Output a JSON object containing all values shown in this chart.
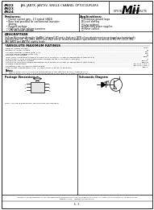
{
  "bg_color": "#ffffff",
  "title_parts": [
    "4N22",
    "4N23",
    "4N24"
  ],
  "subtitle": "JAN, JANTX, JANTXV, SINGLE CHANNEL OPTOCOUPLERS",
  "brand": "Mii",
  "brand_sub": "OPTOELECTRONIC PRODUCTS",
  "brand_sub2": "DIVISION",
  "features_title": "Features:",
  "features": [
    "Overall current gain - 1.0 typical (4N24)",
    "Base lead provided for conventional transistor",
    "  biasing",
    "Rugged package",
    "High gain, high voltage transistor",
    "+5V electrical isolation"
  ],
  "applications_title": "Applications:",
  "applications": [
    "Eliminate ground loops",
    "Level shifting",
    "Line isolation",
    "Switching power supplies",
    "Motor control"
  ],
  "description_title": "DESCRIPTION",
  "description_text": "Gallium Aluminum Arsenide (GaAlAs) infrared LED and a high gain NPN silicon phototransistor packaged in a hermetically\nsealed 6-lead DIP. The 4N22, 4N23, and 4N24 can be tested to customer specifications, as well as to MIL-PRF-19500 (MIL-\nJAN, JANTX and JANTXV) quality levels.",
  "abs_title": "*ABSOLUTE MAXIMUM RATINGS",
  "abs_ratings": [
    [
      "Input to Output Voltage",
      "7.5kV"
    ],
    [
      "Emitter-Collector Voltage",
      "4V"
    ],
    [
      "Collector Emitter Voltage (VCE, 4-1)",
      "30V"
    ],
    [
      "Collector Base Voltage (VCB, 4-1)",
      "70V"
    ],
    [
      "Reverse Input Voltage",
      "3V"
    ],
    [
      "Input (LED) Continuous Forward Current at or below 25°C Free Air Temperature (see note 1)",
      "60mA"
    ],
    [
      "Peak Forward Input Current (Restriction applies for tw < 1us; PRR > 300 pps)",
      "1A"
    ],
    [
      "Continuous Collector Current",
      "100mA"
    ],
    [
      "Continuous Transistor Power Dissipation at or below 25°C Free Air Temperature (see Note 2)",
      "300mW"
    ],
    [
      "Storage Temperature",
      "-65°C to +150°C"
    ],
    [
      "Operating (Free Air) Temperature Range",
      "-55°C to +125°C"
    ],
    [
      "Lead Solder Temperature (+10° (1.6mm) from case for 10 seconds)",
      "300°C"
    ]
  ],
  "notes": [
    "1.  Derate linearly to 0°C from air temperature at the rate of 0.67 mA/°C above 25°C.",
    "2.  Derate linearly to 150°C from air temperature at the rate of 2.0 mW/°C above 25°C."
  ],
  "pkg_title": "Package Dimensions",
  "schematic_title": "Schematic Diagram",
  "note_pkg": "NOTE: ALL LINEAR DIMENSIONS ARE IN INCHES (MILLIMETERS)",
  "footer_line1": "INDUSTRIAL MICROELECTRONICS, INC. OPTOELECTRONIC PRODUCTS DIVISION / 6361 BEACH ST. GILROY, CA  93020 / PH: 408-842-5771 / FX 408-842-5196",
  "footer_line2": "www.miiinc.com     www.optoelectronics.com",
  "footer_page": "S - 1"
}
